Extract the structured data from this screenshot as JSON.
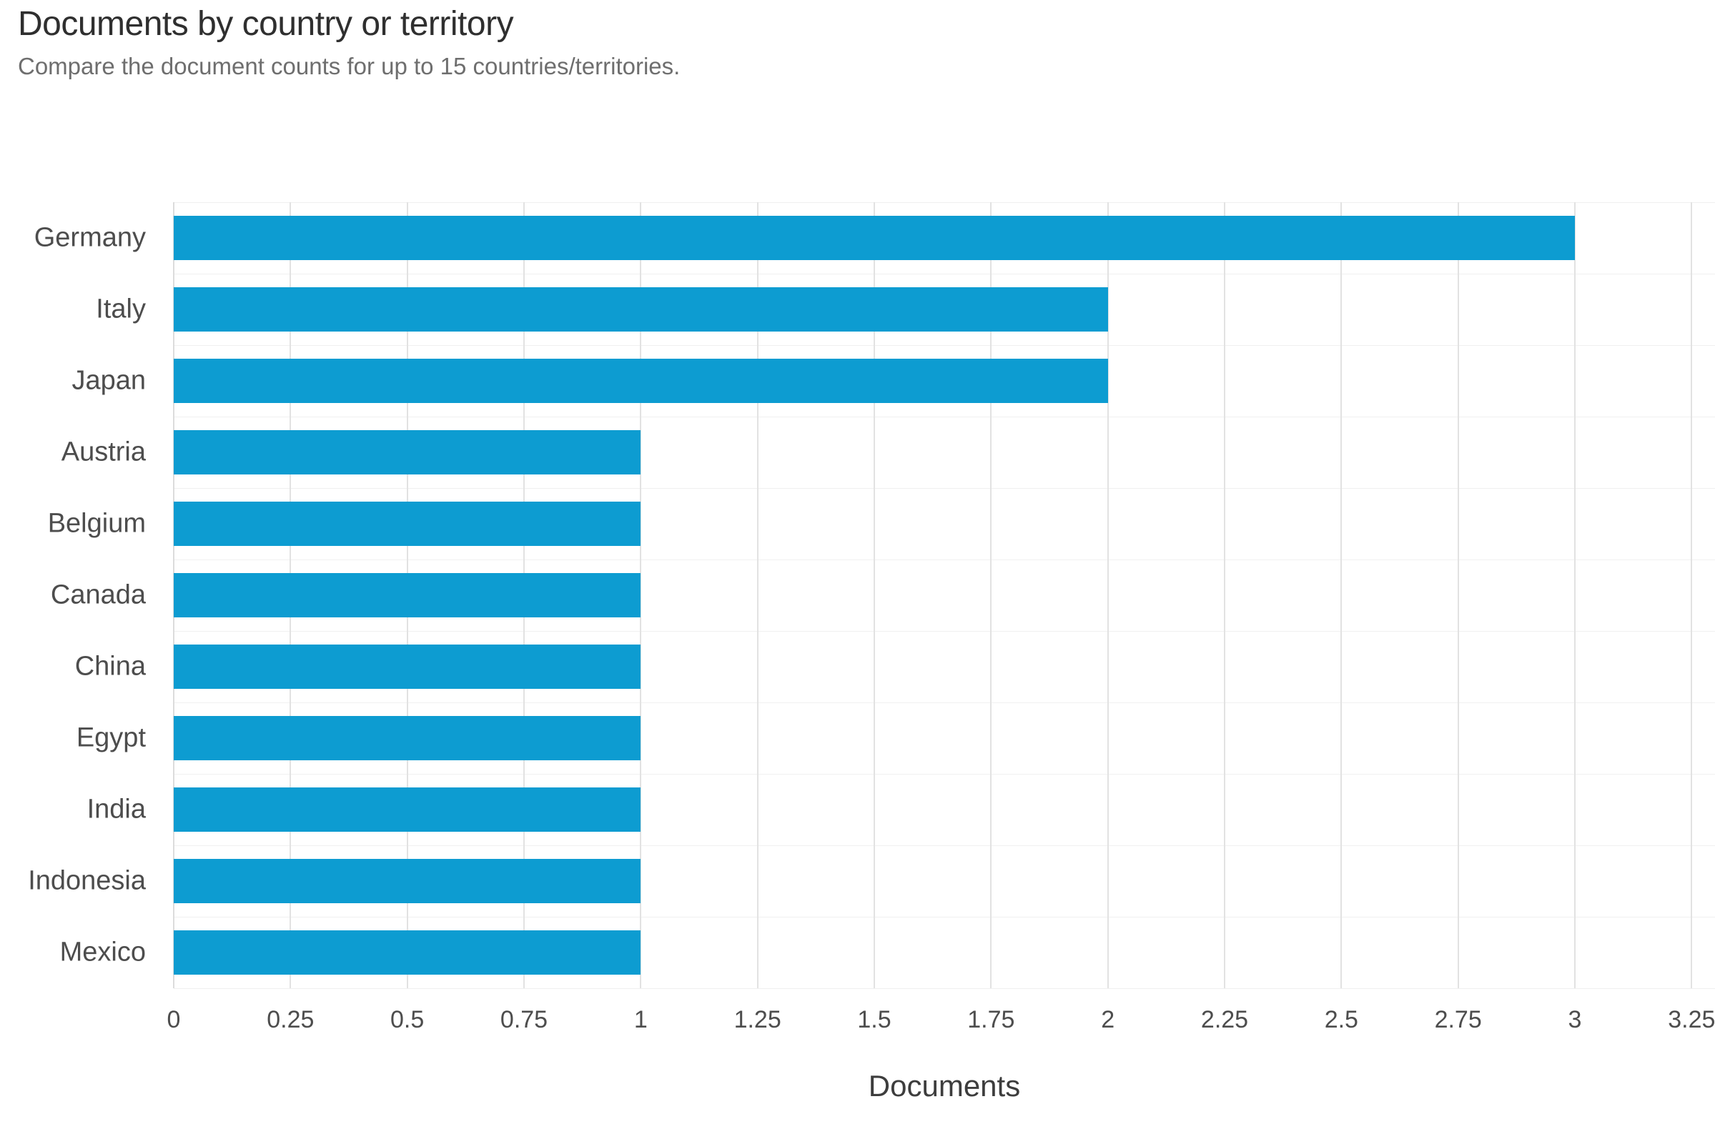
{
  "header": {
    "title": "Documents by country or territory",
    "subtitle": "Compare the document counts for up to 15 countries/territories."
  },
  "chart_data": {
    "type": "bar",
    "orientation": "horizontal",
    "title": "Documents by country or territory",
    "subtitle": "Compare the document counts for up to 15 countries/territories.",
    "categories": [
      "Germany",
      "Italy",
      "Japan",
      "Austria",
      "Belgium",
      "Canada",
      "China",
      "Egypt",
      "India",
      "Indonesia",
      "Mexico"
    ],
    "values": [
      3,
      2,
      2,
      1,
      1,
      1,
      1,
      1,
      1,
      1,
      1
    ],
    "xlabel": "Documents",
    "ylabel": "",
    "xlim": [
      0,
      3.3
    ],
    "xticks": [
      0,
      0.25,
      0.5,
      0.75,
      1,
      1.25,
      1.5,
      1.75,
      2,
      2.25,
      2.5,
      2.75,
      3,
      3.25
    ],
    "xtick_labels": [
      "0",
      "0.25",
      "0.5",
      "0.75",
      "1",
      "1.25",
      "1.5",
      "1.75",
      "2",
      "2.25",
      "2.5",
      "2.75",
      "3",
      "3.25"
    ],
    "grid": "vertical",
    "legend": "none",
    "bar_color": "#0d9cd1"
  },
  "colors": {
    "bar": "#0d9cd1",
    "title_text": "#2f2f2f",
    "subtitle_text": "#6e6e6e",
    "axis_text": "#4d4d4d",
    "gridline": "#e2e2e2",
    "band_separator": "#f0f0f0",
    "background": "#ffffff"
  }
}
